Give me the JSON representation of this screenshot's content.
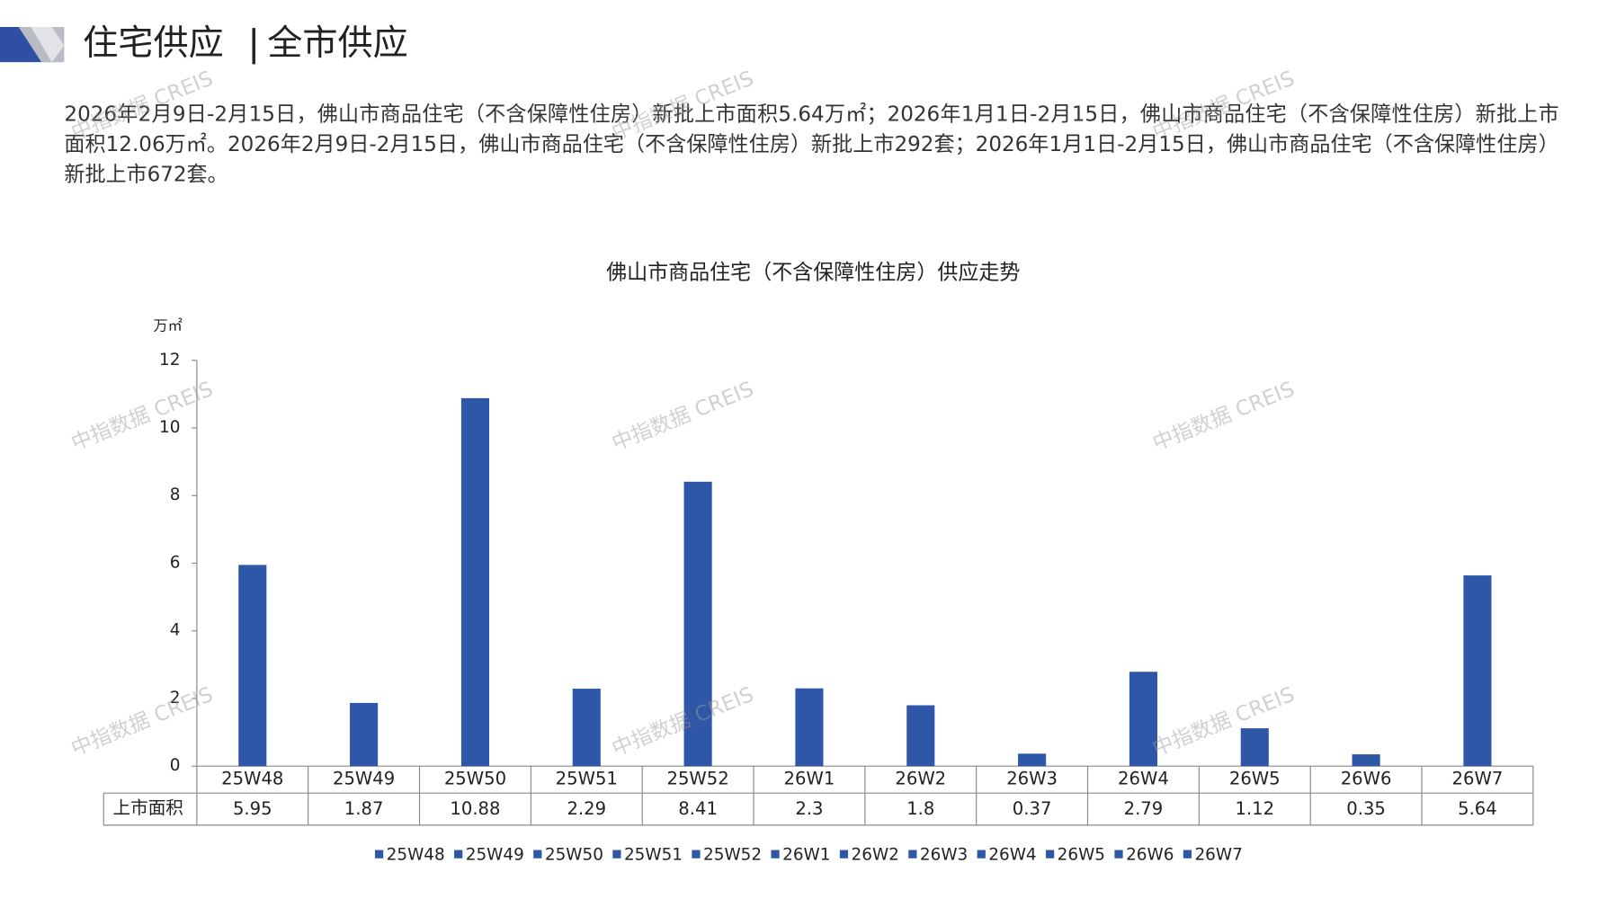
{
  "header": {
    "title": "住宅供应",
    "subtitle": "全市供应"
  },
  "paragraph": "2026年2月9日-2月15日，佛山市商品住宅（不含保障性住房）新批上市面积5.64万㎡；2026年1月1日-2月15日，佛山市商品住宅（不含保障性住房）新批上市面积12.06万㎡。2026年2月9日-2月15日，佛山市商品住宅（不含保障性住房）新批上市292套；2026年1月1日-2月15日，佛山市商品住宅（不含保障性住房）新批上市672套。",
  "watermark": "中指数据 CREIS",
  "chart_data": {
    "type": "bar",
    "title": "佛山市商品住宅（不含保障性住房）供应走势",
    "y_label": "万㎡",
    "table_row_label": "上市面积",
    "categories": [
      "25W48",
      "25W49",
      "25W50",
      "25W51",
      "25W52",
      "26W1",
      "26W2",
      "26W3",
      "26W4",
      "26W5",
      "26W6",
      "26W7"
    ],
    "values": [
      5.95,
      1.87,
      10.88,
      2.29,
      8.41,
      2.3,
      1.8,
      0.37,
      2.79,
      1.12,
      0.35,
      5.64
    ],
    "color": "#2f57a8",
    "ylim": [
      0,
      12
    ],
    "yticks": [
      0,
      2,
      4,
      6,
      8,
      10,
      12
    ],
    "grid": false
  }
}
